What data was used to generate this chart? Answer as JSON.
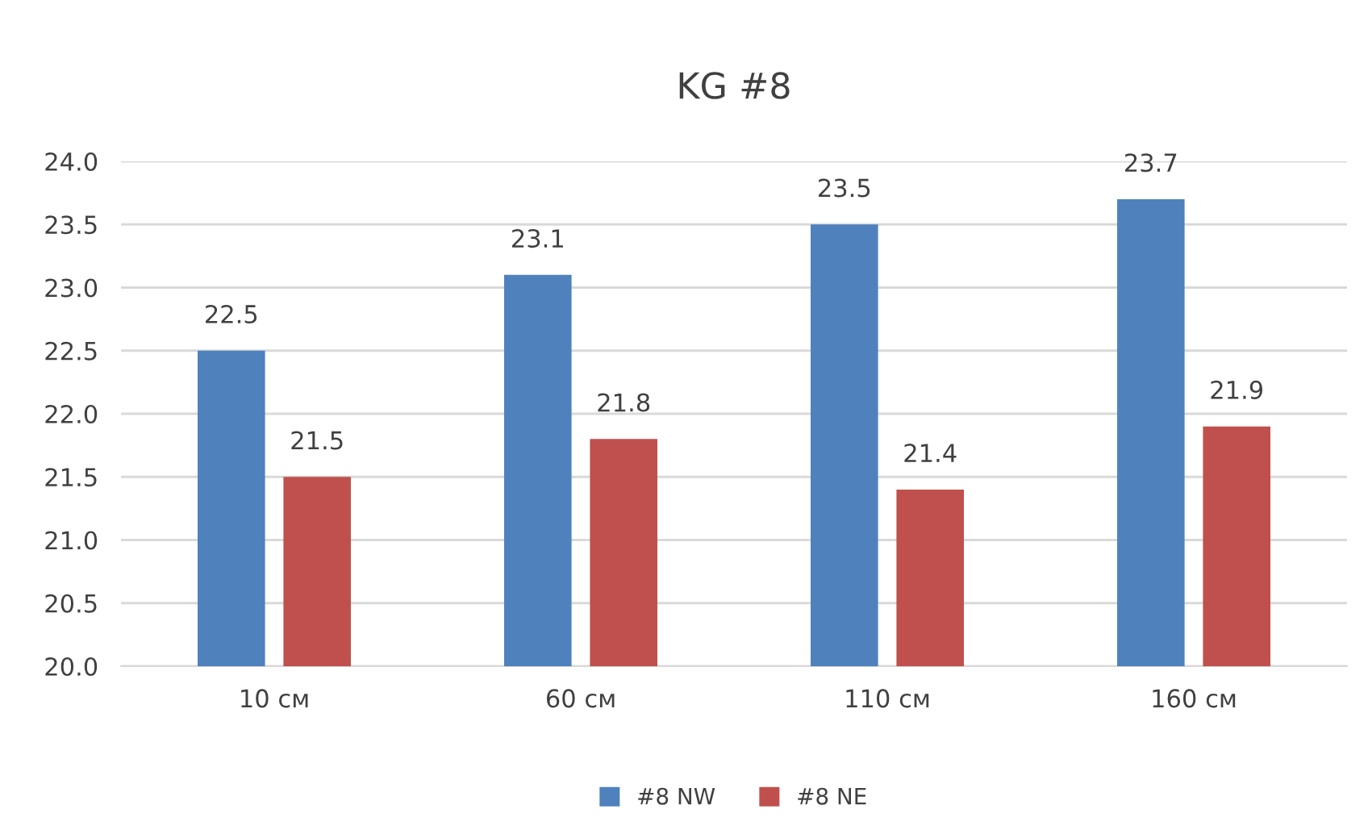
{
  "chart_data": {
    "type": "bar",
    "title": "KG #8",
    "categories": [
      "10 см",
      "60 см",
      "110 см",
      "160 см"
    ],
    "series": [
      {
        "name": "#8 NW",
        "color": "#4f81bd",
        "values": [
          22.5,
          23.1,
          23.5,
          23.7
        ]
      },
      {
        "name": "#8 NE",
        "color": "#c0504d",
        "values": [
          21.5,
          21.8,
          21.4,
          21.9
        ]
      }
    ],
    "ylim": [
      20,
      24
    ],
    "yticks": [
      {
        "value": 20,
        "label": "20.0"
      },
      20.5,
      {
        "value": 21,
        "label": "21.0"
      },
      21.5,
      {
        "value": 22,
        "label": "22.0"
      },
      22.5,
      {
        "value": 23,
        "label": "23.0"
      },
      23.5,
      {
        "value": 24,
        "label": "24.0"
      }
    ],
    "grid": "y",
    "legend": "bottom",
    "data_labels": true
  }
}
